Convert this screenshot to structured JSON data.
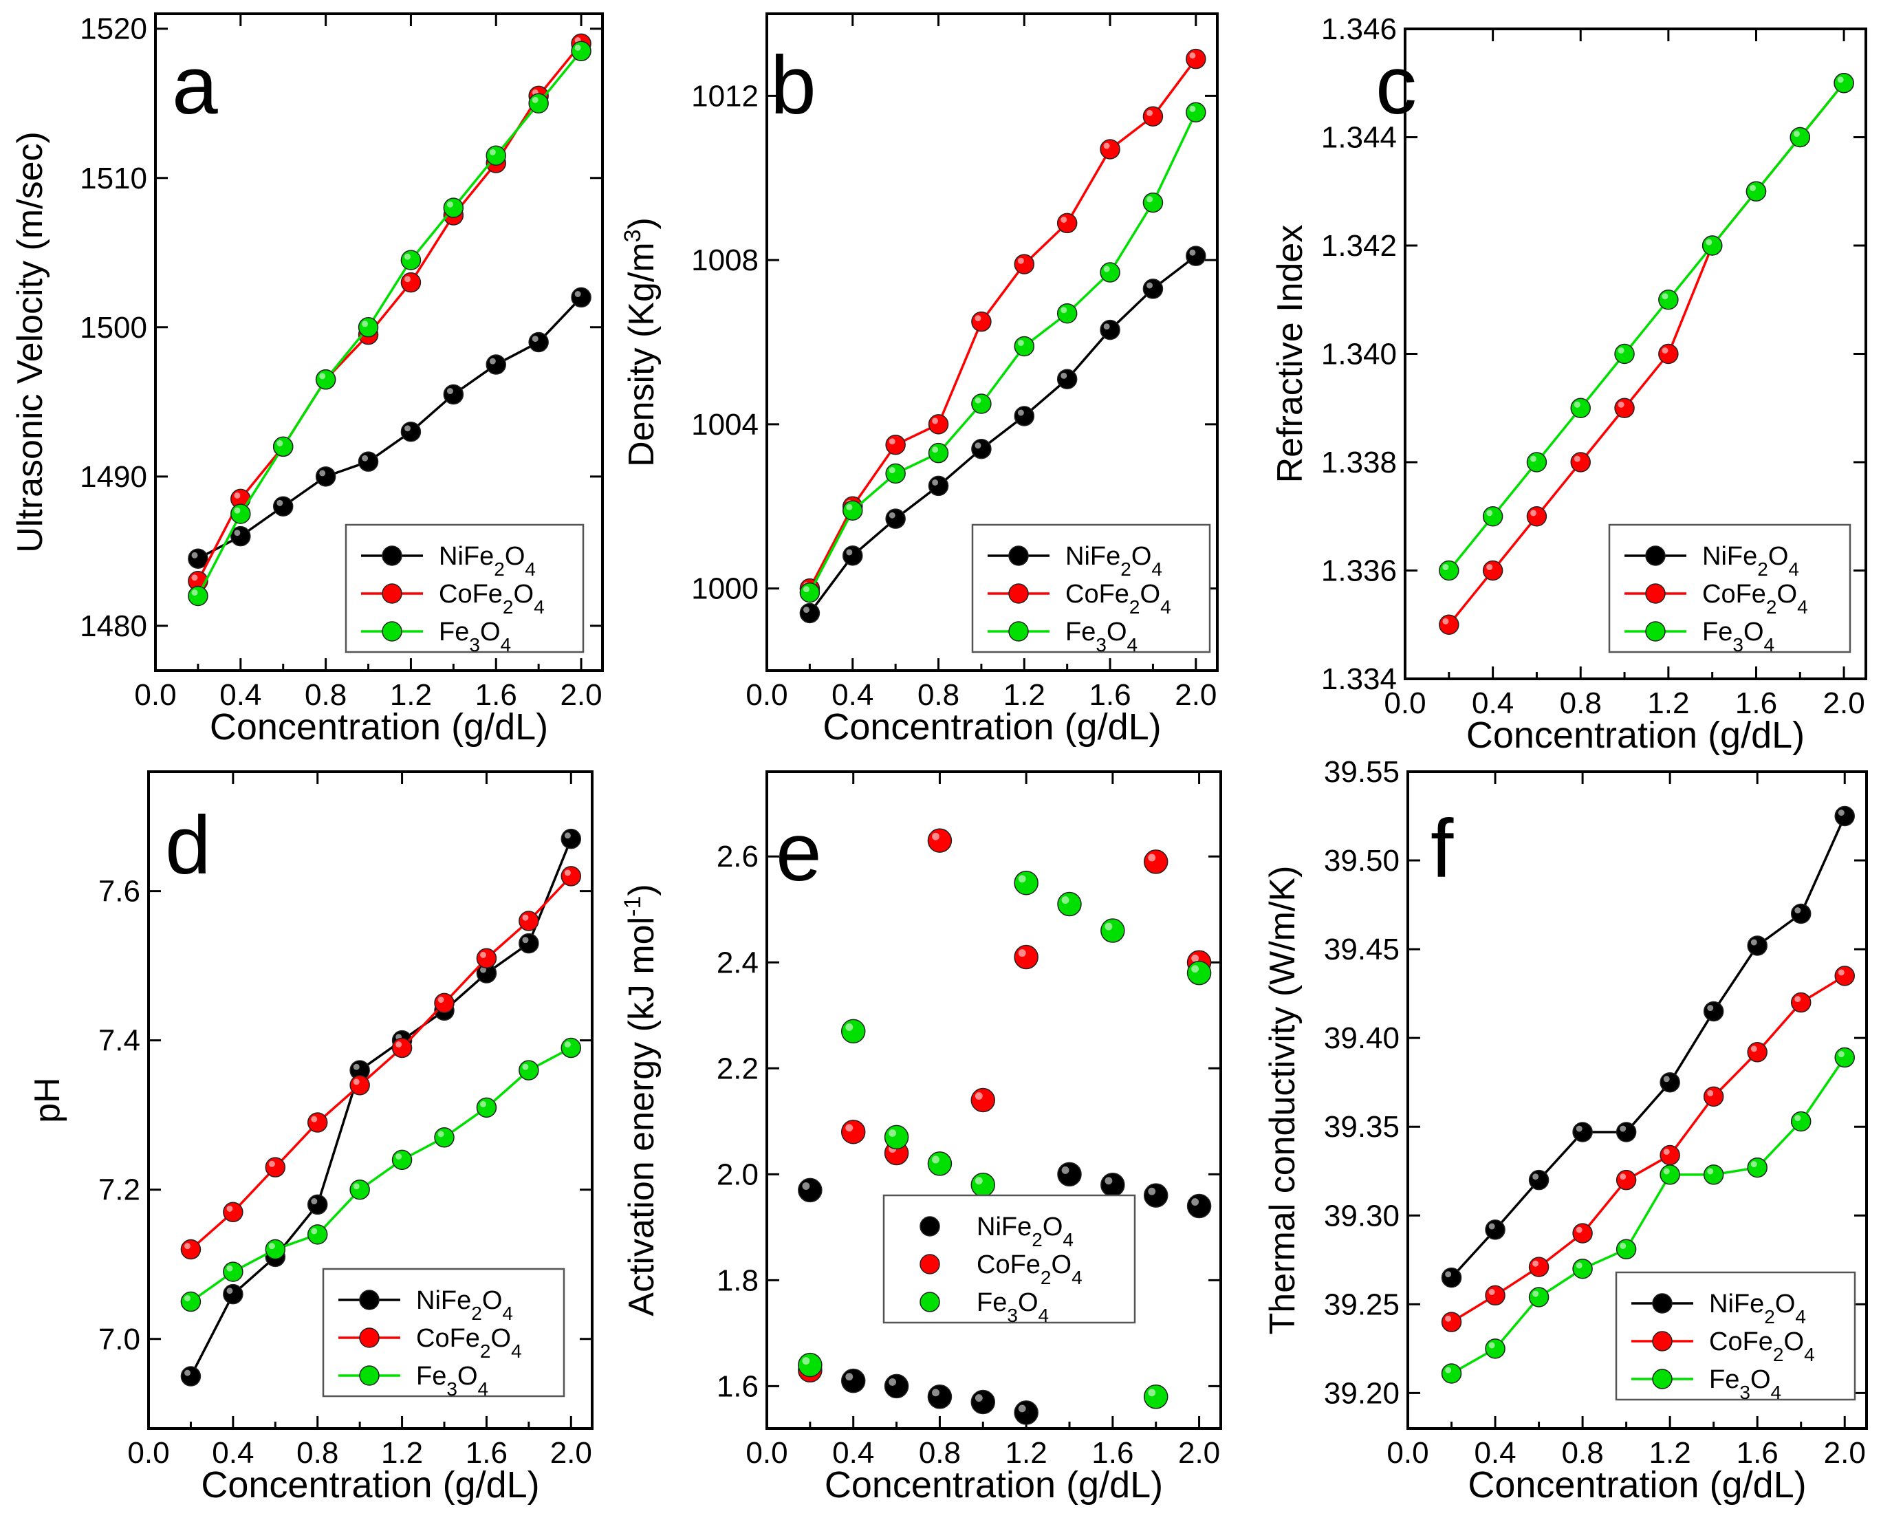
{
  "colors": {
    "NiFe2O4": "#000000",
    "CoFe2O4": "#ff0000",
    "Fe3O4": "#00e000"
  },
  "chart_data": [
    {
      "panel": "a",
      "type": "line",
      "xlabel": "Concentration (g/dL)",
      "ylabel": "Ultrasonic Velocity (m/sec)",
      "xlim": [
        0.0,
        2.1
      ],
      "ylim": [
        1477,
        1521
      ],
      "xticks": [
        0.0,
        0.4,
        0.8,
        1.2,
        1.6,
        2.0
      ],
      "xtick_labels": [
        "0.0",
        "0.4",
        "0.8",
        "1.2",
        "1.6",
        "2.0"
      ],
      "yticks": [
        1480,
        1490,
        1500,
        1510,
        1520
      ],
      "ytick_labels": [
        "1480",
        "1490",
        "1500",
        "1510",
        "1520"
      ],
      "legend_position": "bottom-right",
      "series": [
        {
          "name": "NiFe2O4",
          "label": "NiFe",
          "sub1": "2",
          "mid": "O",
          "sub2": "4",
          "x": [
            0.2,
            0.4,
            0.6,
            0.8,
            1.0,
            1.2,
            1.4,
            1.6,
            1.8,
            2.0
          ],
          "values": [
            1484.5,
            1486,
            1488,
            1490,
            1491,
            1493,
            1495.5,
            1497.5,
            1499,
            1502
          ]
        },
        {
          "name": "CoFe2O4",
          "label": "CoFe",
          "sub1": "2",
          "mid": "O",
          "sub2": "4",
          "x": [
            0.2,
            0.4,
            0.6,
            0.8,
            1.0,
            1.2,
            1.4,
            1.6,
            1.8,
            2.0
          ],
          "values": [
            1483,
            1488.5,
            1492,
            1496.5,
            1499.5,
            1503,
            1507.5,
            1511,
            1515.5,
            1519
          ]
        },
        {
          "name": "Fe3O4",
          "label": "Fe",
          "sub1": "3",
          "mid": "O",
          "sub2": "4",
          "x": [
            0.2,
            0.4,
            0.6,
            0.8,
            1.0,
            1.2,
            1.4,
            1.6,
            1.8,
            2.0
          ],
          "values": [
            1482,
            1487.5,
            1492,
            1496.5,
            1500,
            1504.5,
            1508,
            1511.5,
            1515,
            1518.5
          ]
        }
      ]
    },
    {
      "panel": "b",
      "type": "line",
      "xlabel": "Concentration (g/dL)",
      "ylabel": "Density (Kg/m",
      "ylabel_sup": "3",
      "ylabel_end": ")",
      "xlim": [
        0.0,
        2.1
      ],
      "ylim": [
        998.0,
        1014.0
      ],
      "xticks": [
        0.0,
        0.4,
        0.8,
        1.2,
        1.6,
        2.0
      ],
      "xtick_labels": [
        "0.0",
        "0.4",
        "0.8",
        "1.2",
        "1.6",
        "2.0"
      ],
      "yticks": [
        1000,
        1004,
        1008,
        1012
      ],
      "ytick_labels": [
        "1000",
        "1004",
        "1008",
        "1012"
      ],
      "legend_position": "bottom-right",
      "series": [
        {
          "name": "NiFe2O4",
          "label": "NiFe",
          "sub1": "2",
          "mid": "O",
          "sub2": "4",
          "x": [
            0.2,
            0.4,
            0.6,
            0.8,
            1.0,
            1.2,
            1.4,
            1.6,
            1.8,
            2.0
          ],
          "values": [
            999.4,
            1000.8,
            1001.7,
            1002.5,
            1003.4,
            1004.2,
            1005.1,
            1006.3,
            1007.3,
            1008.1
          ]
        },
        {
          "name": "CoFe2O4",
          "label": "CoFe",
          "sub1": "2",
          "mid": "O",
          "sub2": "4",
          "x": [
            0.2,
            0.4,
            0.6,
            0.8,
            1.0,
            1.2,
            1.4,
            1.6,
            1.8,
            2.0
          ],
          "values": [
            1000.0,
            1002.0,
            1003.5,
            1004.0,
            1006.5,
            1007.9,
            1008.9,
            1010.7,
            1011.5,
            1012.9
          ]
        },
        {
          "name": "Fe3O4",
          "label": "Fe",
          "sub1": "3",
          "mid": "O",
          "sub2": "4",
          "x": [
            0.2,
            0.4,
            0.6,
            0.8,
            1.0,
            1.2,
            1.4,
            1.6,
            1.8,
            2.0
          ],
          "values": [
            999.9,
            1001.9,
            1002.8,
            1003.3,
            1004.5,
            1005.9,
            1006.7,
            1007.7,
            1009.4,
            1011.6
          ]
        }
      ]
    },
    {
      "panel": "c",
      "type": "line",
      "xlabel": "Concentration (g/dL)",
      "ylabel": "Refractive Index",
      "xlim": [
        0.0,
        2.1
      ],
      "ylim": [
        1.334,
        1.346
      ],
      "xticks": [
        0.0,
        0.4,
        0.8,
        1.2,
        1.6,
        2.0
      ],
      "xtick_labels": [
        "0.0",
        "0.4",
        "0.8",
        "1.2",
        "1.6",
        "2.0"
      ],
      "yticks": [
        1.334,
        1.336,
        1.338,
        1.34,
        1.342,
        1.344,
        1.346
      ],
      "ytick_labels": [
        "1.334",
        "1.336",
        "1.338",
        "1.340",
        "1.342",
        "1.344",
        "1.346"
      ],
      "legend_position": "bottom-right",
      "series": [
        {
          "name": "NiFe2O4",
          "label": "NiFe",
          "sub1": "2",
          "mid": "O",
          "sub2": "4",
          "x": [],
          "values": []
        },
        {
          "name": "CoFe2O4",
          "label": "CoFe",
          "sub1": "2",
          "mid": "O",
          "sub2": "4",
          "x": [
            0.2,
            0.4,
            0.6,
            0.8,
            1.0,
            1.2,
            1.4,
            1.6,
            1.8,
            2.0
          ],
          "values": [
            1.335,
            1.336,
            1.337,
            1.338,
            1.339,
            1.34,
            1.342,
            1.343,
            1.344,
            1.345
          ]
        },
        {
          "name": "Fe3O4",
          "label": "Fe",
          "sub1": "3",
          "mid": "O",
          "sub2": "4",
          "x": [
            0.2,
            0.4,
            0.6,
            0.8,
            1.0,
            1.2,
            1.4,
            1.6,
            1.8,
            2.0
          ],
          "values": [
            1.336,
            1.337,
            1.338,
            1.339,
            1.34,
            1.341,
            1.342,
            1.343,
            1.344,
            1.345
          ]
        }
      ]
    },
    {
      "panel": "d",
      "type": "line",
      "xlabel": "Concentration (g/dL)",
      "ylabel": "pH",
      "xlim": [
        0.0,
        2.1
      ],
      "ylim": [
        6.88,
        7.76
      ],
      "xticks": [
        0.0,
        0.4,
        0.8,
        1.2,
        1.6,
        2.0
      ],
      "xtick_labels": [
        "0.0",
        "0.4",
        "0.8",
        "1.2",
        "1.6",
        "2.0"
      ],
      "yticks": [
        7.0,
        7.2,
        7.4,
        7.6
      ],
      "ytick_labels": [
        "7.0",
        "7.2",
        "7.4",
        "7.6"
      ],
      "legend_position": "bottom-right",
      "series": [
        {
          "name": "NiFe2O4",
          "label": "NiFe",
          "sub1": "2",
          "mid": "O",
          "sub2": "4",
          "x": [
            0.2,
            0.4,
            0.6,
            0.8,
            1.0,
            1.2,
            1.4,
            1.6,
            1.8,
            2.0
          ],
          "values": [
            6.95,
            7.06,
            7.11,
            7.18,
            7.36,
            7.4,
            7.44,
            7.49,
            7.53,
            7.67
          ]
        },
        {
          "name": "CoFe2O4",
          "label": "CoFe",
          "sub1": "2",
          "mid": "O",
          "sub2": "4",
          "x": [
            0.2,
            0.4,
            0.6,
            0.8,
            1.0,
            1.2,
            1.4,
            1.6,
            1.8,
            2.0
          ],
          "values": [
            7.12,
            7.17,
            7.23,
            7.29,
            7.34,
            7.39,
            7.45,
            7.51,
            7.56,
            7.62
          ]
        },
        {
          "name": "Fe3O4",
          "label": "Fe",
          "sub1": "3",
          "mid": "O",
          "sub2": "4",
          "x": [
            0.2,
            0.4,
            0.6,
            0.8,
            1.0,
            1.2,
            1.4,
            1.6,
            1.8,
            2.0
          ],
          "values": [
            7.05,
            7.09,
            7.12,
            7.14,
            7.2,
            7.24,
            7.27,
            7.31,
            7.36,
            7.39
          ]
        }
      ]
    },
    {
      "panel": "e",
      "type": "scatter",
      "xlabel": "Concentration (g/dL)",
      "ylabel": "Activation energy (kJ mol",
      "ylabel_sup": "-1",
      "ylabel_end": ")",
      "xlim": [
        0.0,
        2.1
      ],
      "ylim": [
        1.52,
        2.76
      ],
      "xticks": [
        0.0,
        0.4,
        0.8,
        1.2,
        1.6,
        2.0
      ],
      "xtick_labels": [
        "0.0",
        "0.4",
        "0.8",
        "1.2",
        "1.6",
        "2.0"
      ],
      "yticks": [
        1.6,
        1.8,
        2.0,
        2.2,
        2.4,
        2.6
      ],
      "ytick_labels": [
        "1.6",
        "1.8",
        "2.0",
        "2.2",
        "2.4",
        "2.6"
      ],
      "legend_position": "center",
      "series": [
        {
          "name": "NiFe2O4",
          "label": "NiFe",
          "sub1": "2",
          "mid": "O",
          "sub2": "4",
          "x": [
            0.2,
            0.4,
            0.6,
            0.8,
            1.0,
            1.2,
            1.4,
            1.6,
            1.8,
            2.0
          ],
          "values": [
            1.97,
            1.61,
            1.6,
            1.58,
            1.57,
            1.55,
            2.0,
            1.98,
            1.96,
            1.94
          ]
        },
        {
          "name": "CoFe2O4",
          "label": "CoFe",
          "sub1": "2",
          "mid": "O",
          "sub2": "4",
          "x": [
            0.2,
            0.4,
            0.6,
            0.8,
            1.0,
            1.2,
            1.8,
            2.0
          ],
          "values": [
            1.63,
            2.08,
            2.04,
            2.63,
            2.14,
            2.41,
            2.59,
            2.4
          ]
        },
        {
          "name": "Fe3O4",
          "label": "Fe",
          "sub1": "3",
          "mid": "O",
          "sub2": "4",
          "x": [
            0.2,
            0.4,
            0.6,
            0.8,
            1.0,
            1.2,
            1.4,
            1.6,
            1.8,
            2.0
          ],
          "values": [
            1.64,
            2.27,
            2.07,
            2.02,
            1.98,
            2.55,
            2.51,
            2.46,
            1.58,
            2.38
          ]
        }
      ]
    },
    {
      "panel": "f",
      "type": "line",
      "xlabel": "Concentration (g/dL)",
      "ylabel": "Thermal conductivity (W/m/K)",
      "xlim": [
        0.0,
        2.1
      ],
      "ylim": [
        39.18,
        39.55
      ],
      "xticks": [
        0.0,
        0.4,
        0.8,
        1.2,
        1.6,
        2.0
      ],
      "xtick_labels": [
        "0.0",
        "0.4",
        "0.8",
        "1.2",
        "1.6",
        "2.0"
      ],
      "yticks": [
        39.2,
        39.25,
        39.3,
        39.35,
        39.4,
        39.45,
        39.5,
        39.55
      ],
      "ytick_labels": [
        "39.20",
        "39.25",
        "39.30",
        "39.35",
        "39.40",
        "39.45",
        "39.50",
        "39.55"
      ],
      "legend_position": "bottom-right",
      "series": [
        {
          "name": "NiFe2O4",
          "label": "NiFe",
          "sub1": "2",
          "mid": "O",
          "sub2": "4",
          "x": [
            0.2,
            0.4,
            0.6,
            0.8,
            1.0,
            1.2,
            1.4,
            1.6,
            1.8,
            2.0
          ],
          "values": [
            39.265,
            39.292,
            39.32,
            39.347,
            39.347,
            39.375,
            39.415,
            39.452,
            39.47,
            39.525
          ]
        },
        {
          "name": "CoFe2O4",
          "label": "CoFe",
          "sub1": "2",
          "mid": "O",
          "sub2": "4",
          "x": [
            0.2,
            0.4,
            0.6,
            0.8,
            1.0,
            1.2,
            1.4,
            1.6,
            1.8,
            2.0
          ],
          "values": [
            39.24,
            39.255,
            39.271,
            39.29,
            39.32,
            39.334,
            39.367,
            39.392,
            39.42,
            39.435
          ]
        },
        {
          "name": "Fe3O4",
          "label": "Fe",
          "sub1": "3",
          "mid": "O",
          "sub2": "4",
          "x": [
            0.2,
            0.4,
            0.6,
            0.8,
            1.0,
            1.2,
            1.4,
            1.6,
            1.8,
            2.0
          ],
          "values": [
            39.211,
            39.225,
            39.254,
            39.27,
            39.281,
            39.323,
            39.323,
            39.327,
            39.353,
            39.389
          ]
        }
      ]
    }
  ]
}
